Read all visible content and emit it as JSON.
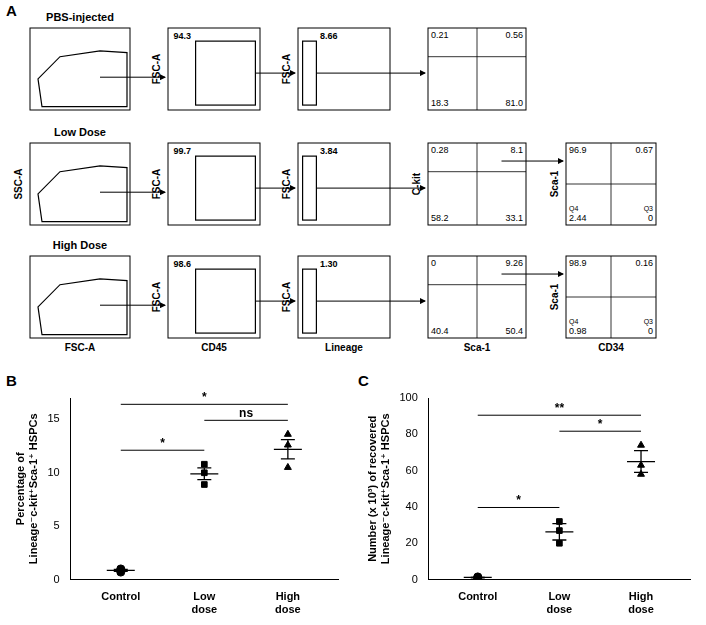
{
  "panel_a": {
    "label": "A",
    "rows": [
      {
        "title": "PBS-injected",
        "plots": [
          {},
          {
            "y_label": "FSC-A",
            "percent": 94.3
          },
          {
            "y_label": "FSC-A",
            "percent": 8.66
          },
          {
            "quadrants": {
              "upper_left": 0.21,
              "upper_right": 0.56,
              "lower_left": 18.3,
              "lower_right": {
                "value": 81,
                "label": "81.0"
              }
            }
          }
        ]
      },
      {
        "title": "Low Dose",
        "plots": [
          {
            "y_label": "SSC-A"
          },
          {
            "y_label": "FSC-A",
            "percent": 99.7
          },
          {
            "y_label": "FSC-A",
            "percent": 3.84
          },
          {
            "y_label": "C-kit",
            "quadrants": {
              "upper_left": 0.28,
              "upper_right": 8.1,
              "lower_left": 58.2,
              "lower_right": 33.1
            }
          },
          {
            "y_label": "Sca-1",
            "quadrants": {
              "upper_left": 96.9,
              "upper_right": 0.67,
              "lower_left": 2.44,
              "lower_right": 0
            },
            "quadrant_names": {
              "lower_left": "Q4",
              "lower_right": "Q3"
            }
          }
        ]
      },
      {
        "title": "High Dose",
        "plots": [
          {
            "x_label": "FSC-A"
          },
          {
            "y_label": "FSC-A",
            "x_label": "CD45",
            "percent": 98.6
          },
          {
            "y_label": "FSC-A",
            "x_label": "Lineage",
            "percent": {
              "value": 1.3,
              "label": "1.30"
            }
          },
          {
            "x_label": "Sca-1",
            "quadrants": {
              "upper_left": 0,
              "upper_right": 9.26,
              "lower_left": 40.4,
              "lower_right": 50.4
            }
          },
          {
            "y_label": "Sca-1",
            "x_label": "CD34",
            "quadrants": {
              "upper_left": 98.9,
              "upper_right": 0.16,
              "lower_left": 0.98,
              "lower_right": 0
            },
            "quadrant_names": {
              "lower_left": "Q4",
              "lower_right": "Q3"
            }
          }
        ]
      }
    ]
  },
  "chart_data": [
    {
      "label": "B",
      "type": "scatter",
      "categories": [
        "Control",
        "Low dose",
        "High dose"
      ],
      "values": [
        [
          0.7,
          0.9,
          1.0
        ],
        [
          10.8,
          10.0,
          8.9
        ],
        [
          13.6,
          12.6,
          10.5
        ]
      ],
      "mean": [
        0.87,
        9.9,
        12.2
      ],
      "error": [
        0.09,
        0.55,
        0.9
      ],
      "marker": [
        "circle",
        "rect",
        "triangle"
      ],
      "color": "#000000",
      "y_label": [
        "Percentage of",
        "Lineage⁻c-kit⁺Sca-1⁺ HSPCs"
      ],
      "ylim": [
        0,
        17
      ],
      "yticks": [
        0,
        5,
        10,
        15
      ],
      "grid": false,
      "significance": [
        {
          "from": "Control",
          "to": "Low dose",
          "text": "*"
        },
        {
          "from": "Low dose",
          "to": "High dose",
          "text": "ns"
        },
        {
          "from": "Control",
          "to": "High dose",
          "text": "*"
        }
      ]
    },
    {
      "label": "C",
      "type": "scatter",
      "categories": [
        "Control",
        "Low dose",
        "High dose"
      ],
      "values": [
        [
          0.8,
          1.2,
          1.5
        ],
        [
          32,
          27,
          20
        ],
        [
          74,
          63,
          58
        ]
      ],
      "mean": [
        1.2,
        26.3,
        65
      ],
      "error": [
        0.2,
        4.5,
        6
      ],
      "marker": [
        "circle",
        "rect",
        "triangle"
      ],
      "color": "#000000",
      "y_label": [
        "Number (x 10³) of recovered",
        "Lineage⁻c-kit⁺Sca-1⁺ HSPCs"
      ],
      "ylim": [
        0,
        100
      ],
      "yticks": [
        0,
        20,
        40,
        60,
        80,
        100
      ],
      "grid": false,
      "significance": [
        {
          "from": "Control",
          "to": "Low dose",
          "text": "*"
        },
        {
          "from": "Low dose",
          "to": "High dose",
          "text": "*"
        },
        {
          "from": "Control",
          "to": "High dose",
          "text": "**"
        }
      ]
    }
  ]
}
